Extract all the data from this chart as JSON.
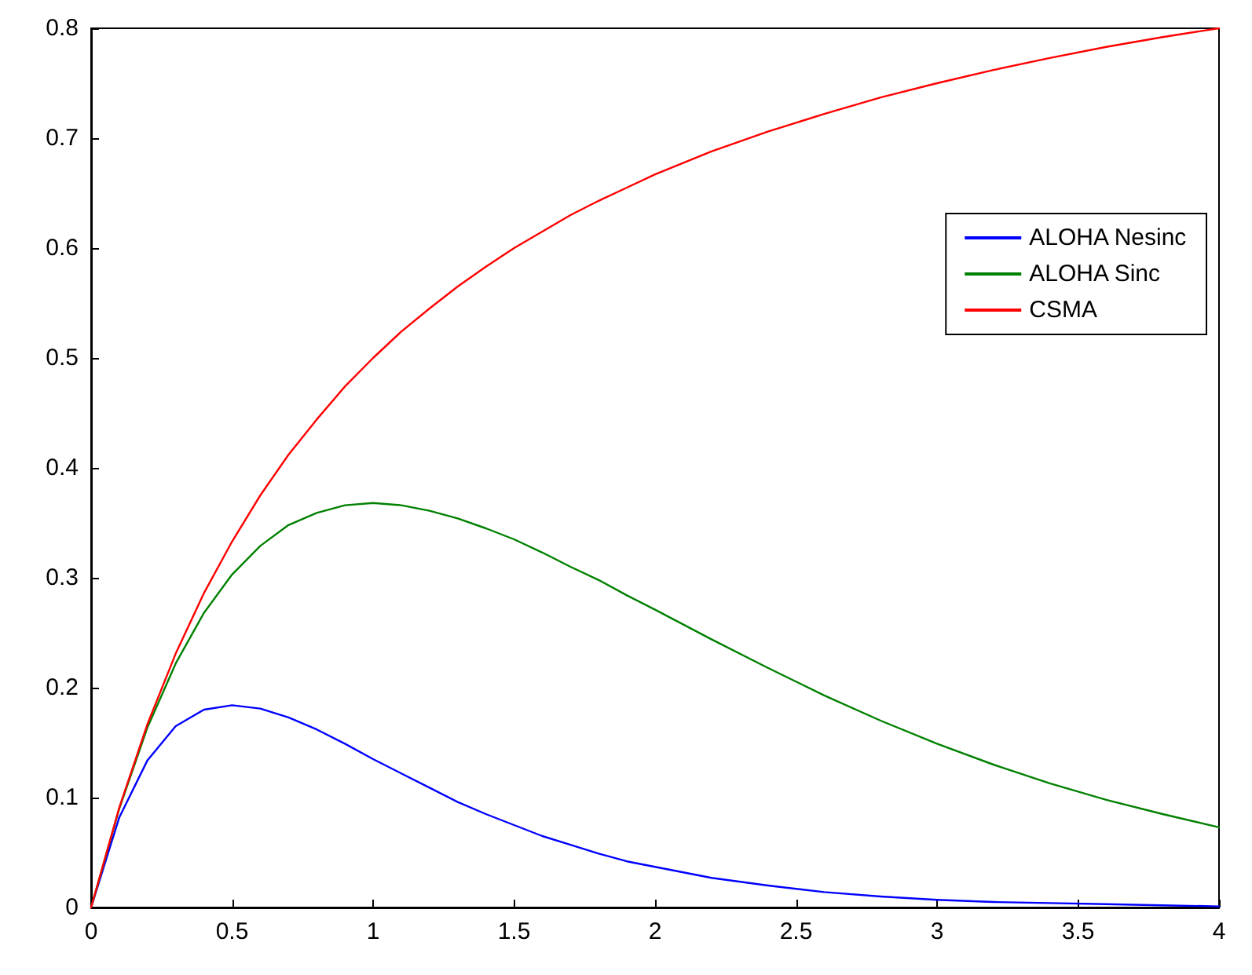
{
  "chart_data": {
    "type": "line",
    "x": [
      0,
      0.1,
      0.2,
      0.3,
      0.4,
      0.5,
      0.6,
      0.7,
      0.8,
      0.9,
      1,
      1.1,
      1.2,
      1.3,
      1.4,
      1.5,
      1.6,
      1.7,
      1.8,
      1.9,
      2,
      2.2,
      2.4,
      2.6,
      2.8,
      3,
      3.2,
      3.4,
      3.6,
      3.8,
      4
    ],
    "series": [
      {
        "name": "ALOHA Nesinc",
        "color": "#0000ff",
        "values": [
          0,
          0.082,
          0.134,
          0.165,
          0.18,
          0.184,
          0.181,
          0.173,
          0.162,
          0.149,
          0.135,
          0.122,
          0.109,
          0.096,
          0.085,
          0.075,
          0.065,
          0.057,
          0.049,
          0.042,
          0.037,
          0.027,
          0.02,
          0.014,
          0.01,
          0.007,
          0.005,
          0.004,
          0.003,
          0.002,
          0.001
        ]
      },
      {
        "name": "ALOHA Sinc",
        "color": "#008000",
        "values": [
          0,
          0.09,
          0.164,
          0.222,
          0.268,
          0.303,
          0.329,
          0.348,
          0.359,
          0.366,
          0.368,
          0.366,
          0.361,
          0.354,
          0.345,
          0.335,
          0.323,
          0.31,
          0.298,
          0.284,
          0.271,
          0.244,
          0.218,
          0.193,
          0.17,
          0.149,
          0.13,
          0.113,
          0.098,
          0.085,
          0.073
        ]
      },
      {
        "name": "CSMA",
        "color": "#ff0000",
        "values": [
          0,
          0.091,
          0.167,
          0.231,
          0.286,
          0.333,
          0.375,
          0.412,
          0.444,
          0.474,
          0.5,
          0.524,
          0.545,
          0.565,
          0.583,
          0.6,
          0.615,
          0.63,
          0.643,
          0.655,
          0.667,
          0.688,
          0.706,
          0.722,
          0.737,
          0.75,
          0.762,
          0.773,
          0.783,
          0.792,
          0.8
        ]
      }
    ],
    "xlim": [
      0,
      4
    ],
    "xticks": [
      0,
      0.5,
      1,
      1.5,
      2,
      2.5,
      3,
      3.5,
      4
    ],
    "ylim": [
      0,
      0.8
    ],
    "yticks": [
      0,
      0.1,
      0.2,
      0.3,
      0.4,
      0.5,
      0.6,
      0.7,
      0.8
    ],
    "grid": false,
    "legend": "top right",
    "marker": "none",
    "line_style": "solid"
  }
}
